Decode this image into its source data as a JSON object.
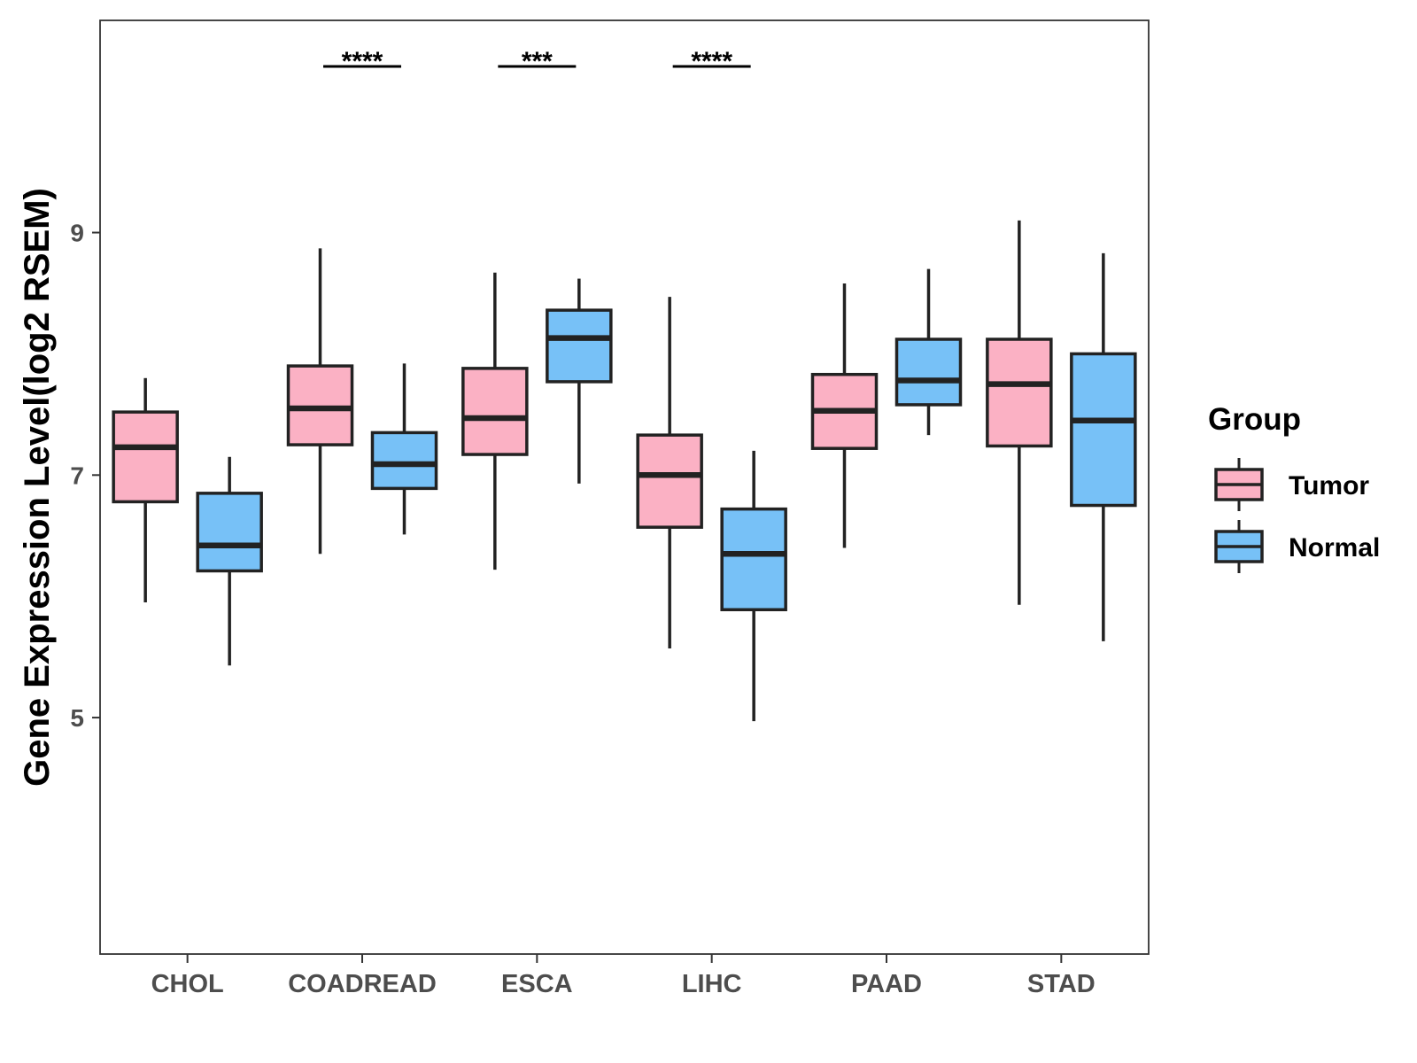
{
  "chart_data": {
    "type": "boxplot",
    "title": "",
    "xlabel": "",
    "ylabel": "Gene Expression Level(log2 RSEM)",
    "ylim": [
      3.05,
      10.75
    ],
    "yticks": [
      5,
      7,
      9
    ],
    "categories": [
      "CHOL",
      "COADREAD",
      "ESCA",
      "LIHC",
      "PAAD",
      "STAD"
    ],
    "legend": {
      "title": "Group",
      "position": "right"
    },
    "series": [
      {
        "name": "Tumor",
        "color": "#FBB1C4",
        "boxes": [
          {
            "category": "CHOL",
            "min": 5.95,
            "q1": 6.78,
            "median": 7.23,
            "q3": 7.52,
            "max": 7.8
          },
          {
            "category": "COADREAD",
            "min": 6.35,
            "q1": 7.25,
            "median": 7.55,
            "q3": 7.9,
            "max": 8.87
          },
          {
            "category": "ESCA",
            "min": 6.22,
            "q1": 7.17,
            "median": 7.47,
            "q3": 7.88,
            "max": 8.67
          },
          {
            "category": "LIHC",
            "min": 5.57,
            "q1": 6.57,
            "median": 7.0,
            "q3": 7.33,
            "max": 8.47
          },
          {
            "category": "PAAD",
            "min": 6.4,
            "q1": 7.22,
            "median": 7.53,
            "q3": 7.83,
            "max": 8.58
          },
          {
            "category": "STAD",
            "min": 5.93,
            "q1": 7.24,
            "median": 7.75,
            "q3": 8.12,
            "max": 9.1
          }
        ]
      },
      {
        "name": "Normal",
        "color": "#77C1F7",
        "boxes": [
          {
            "category": "CHOL",
            "min": 5.43,
            "q1": 6.21,
            "median": 6.42,
            "q3": 6.85,
            "max": 7.15
          },
          {
            "category": "COADREAD",
            "min": 6.51,
            "q1": 6.89,
            "median": 7.09,
            "q3": 7.35,
            "max": 7.92
          },
          {
            "category": "ESCA",
            "min": 6.93,
            "q1": 7.77,
            "median": 8.13,
            "q3": 8.36,
            "max": 8.62
          },
          {
            "category": "LIHC",
            "min": 4.97,
            "q1": 5.89,
            "median": 6.35,
            "q3": 6.72,
            "max": 7.2
          },
          {
            "category": "PAAD",
            "min": 7.33,
            "q1": 7.58,
            "median": 7.78,
            "q3": 8.12,
            "max": 8.7
          },
          {
            "category": "STAD",
            "min": 5.63,
            "q1": 6.75,
            "median": 7.45,
            "q3": 8.0,
            "max": 8.83
          }
        ]
      }
    ],
    "annotations": [
      {
        "category": "COADREAD",
        "label": "****"
      },
      {
        "category": "ESCA",
        "label": "***"
      },
      {
        "category": "LIHC",
        "label": "****"
      }
    ]
  }
}
